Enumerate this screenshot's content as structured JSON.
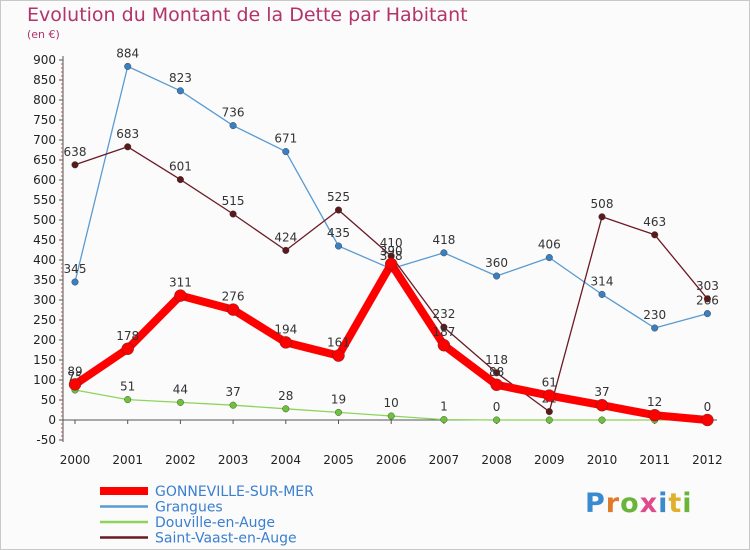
{
  "header": {
    "title": "Evolution du Montant de la Dette par Habitant",
    "unit": "(en €)"
  },
  "logo": {
    "text": "Proxiti",
    "letters": [
      "P",
      "r",
      "o",
      "x",
      "i",
      "t",
      "i"
    ]
  },
  "chart_data": {
    "type": "line",
    "x": [
      "2000",
      "2001",
      "2002",
      "2003",
      "2004",
      "2005",
      "2006",
      "2007",
      "2008",
      "2009",
      "2010",
      "2011",
      "2012"
    ],
    "ylim": [
      -50,
      900
    ],
    "yticks": [
      -50,
      0,
      50,
      100,
      150,
      200,
      250,
      300,
      350,
      400,
      450,
      500,
      550,
      600,
      650,
      700,
      750,
      800,
      850,
      900
    ],
    "grid": false,
    "legend_position": "bottom-left",
    "series": [
      {
        "name": "Grangues",
        "color": "#5a9bd0",
        "values": [
          345,
          884,
          823,
          736,
          671,
          435,
          378,
          418,
          360,
          406,
          314,
          230,
          266
        ],
        "labels": [
          "345",
          "884",
          "823",
          "736",
          "671",
          "435",
          "378",
          "418",
          "360",
          "406",
          "314",
          "230",
          "266"
        ]
      },
      {
        "name": "Saint-Vaast-en-Auge",
        "color": "#6b1a24",
        "values": [
          638,
          683,
          601,
          515,
          424,
          525,
          410,
          232,
          118,
          21,
          508,
          463,
          303
        ],
        "labels": [
          "638",
          "683",
          "601",
          "515",
          "424",
          "525",
          "410",
          "232",
          "118",
          "21",
          "508",
          "463",
          "303"
        ]
      },
      {
        "name": "Douville-en-Auge",
        "color": "#8ed45a",
        "values": [
          75,
          51,
          44,
          37,
          28,
          19,
          10,
          1,
          0,
          0,
          0,
          0,
          0
        ],
        "labels": [
          "75",
          "51",
          "44",
          "37",
          "28",
          "19",
          "10",
          "1",
          "0",
          "",
          "",
          "",
          ""
        ]
      },
      {
        "name": "GONNEVILLE-SUR-MER",
        "color": "#ff0000",
        "values": [
          89,
          178,
          311,
          276,
          194,
          161,
          390,
          187,
          88,
          61,
          37,
          12,
          0
        ],
        "labels": [
          "89",
          "178",
          "311",
          "276",
          "194",
          "161",
          "390",
          "187",
          "88",
          "61",
          "37",
          "12",
          "0"
        ]
      }
    ],
    "legend_order": [
      "GONNEVILLE-SUR-MER",
      "Grangues",
      "Douville-en-Auge",
      "Saint-Vaast-en-Auge"
    ]
  }
}
